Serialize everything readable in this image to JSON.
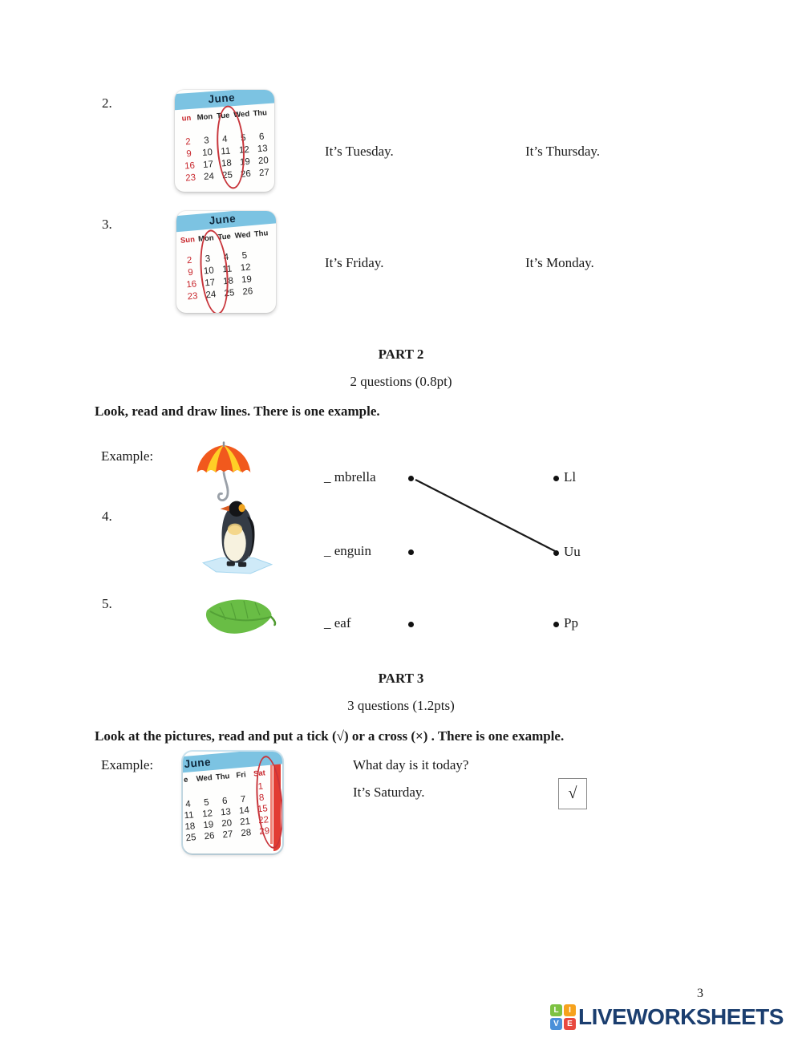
{
  "page_number": "3",
  "part1_items": [
    {
      "num": "2.",
      "left_option": "It’s Tuesday.",
      "right_option": "It’s Thursday."
    },
    {
      "num": "3.",
      "left_option": "It’s Friday.",
      "right_option": "It’s Monday."
    }
  ],
  "calendars": [
    {
      "month": "June",
      "days": [
        "un",
        "Mon",
        "Tue",
        "Wed",
        "Thu"
      ],
      "red_day_indexes": [
        0
      ],
      "red_col": 0,
      "circled_col": 2,
      "rows": [
        [
          "2",
          "3",
          "4",
          "5",
          "6"
        ],
        [
          "9",
          "10",
          "11",
          "12",
          "13"
        ],
        [
          "16",
          "17",
          "18",
          "19",
          "20"
        ],
        [
          "23",
          "24",
          "25",
          "26",
          "27"
        ]
      ]
    },
    {
      "month": "June",
      "days": [
        "Sun",
        "Mon",
        "Tue",
        "Wed",
        "Thu"
      ],
      "red_day_indexes": [
        0
      ],
      "red_col": 0,
      "circled_col": 1,
      "rows": [
        [
          "2",
          "3",
          "4",
          "5",
          ""
        ],
        [
          "9",
          "10",
          "11",
          "12",
          ""
        ],
        [
          "16",
          "17",
          "18",
          "19",
          ""
        ],
        [
          "23",
          "24",
          "25",
          "26",
          ""
        ]
      ]
    },
    {
      "month": "June",
      "days": [
        "e",
        "Wed",
        "Thu",
        "Fri",
        "Sat"
      ],
      "red_day_indexes": [
        4
      ],
      "red_col": 4,
      "circled_col": 4,
      "rows": [
        [
          "",
          "",
          "",
          "",
          "1"
        ],
        [
          "4",
          "5",
          "6",
          "7",
          "8"
        ],
        [
          "11",
          "12",
          "13",
          "14",
          "15"
        ],
        [
          "18",
          "19",
          "20",
          "21",
          "22"
        ],
        [
          "25",
          "26",
          "27",
          "28",
          "29"
        ]
      ]
    }
  ],
  "part2": {
    "title": "PART 2",
    "subtitle": "2 questions (0.8pt)",
    "instruction": "Look, read and draw lines. There is one example.",
    "example_label": "Example:",
    "items": [
      {
        "num": "",
        "word": "_ mbrella",
        "image": "umbrella"
      },
      {
        "num": "4.",
        "word": "_ enguin",
        "image": "penguin"
      },
      {
        "num": "5.",
        "word": "_ eaf",
        "image": "leaf"
      }
    ],
    "letters": [
      "Ll",
      "Uu",
      "Pp"
    ],
    "connection": {
      "from": "_ mbrella",
      "to": "Uu"
    }
  },
  "part3": {
    "title": "PART 3",
    "subtitle": "3 questions (1.2pts)",
    "instruction": "Look at the pictures, read and put a tick (√) or a cross (×) . There is one example.",
    "example_label": "Example:",
    "question": "What day is it today?",
    "answer": "It’s Saturday.",
    "tick_mark": "√"
  },
  "footer": {
    "logo_blocks": [
      {
        "letter": "L",
        "color": "#7dc242"
      },
      {
        "letter": "I",
        "color": "#f6a21d"
      },
      {
        "letter": "V",
        "color": "#4a90d9"
      },
      {
        "letter": "E",
        "color": "#e8483f"
      }
    ],
    "logo_text": "LIVEWORKSHEETS"
  },
  "colors": {
    "calendar_header_blue": "#7cc3e2",
    "calendar_red": "#c8272d",
    "circle_red": "#c8353b",
    "stripe_red": "#e23c33",
    "logo_navy": "#1b3e6f",
    "text": "#1a1a1a"
  }
}
